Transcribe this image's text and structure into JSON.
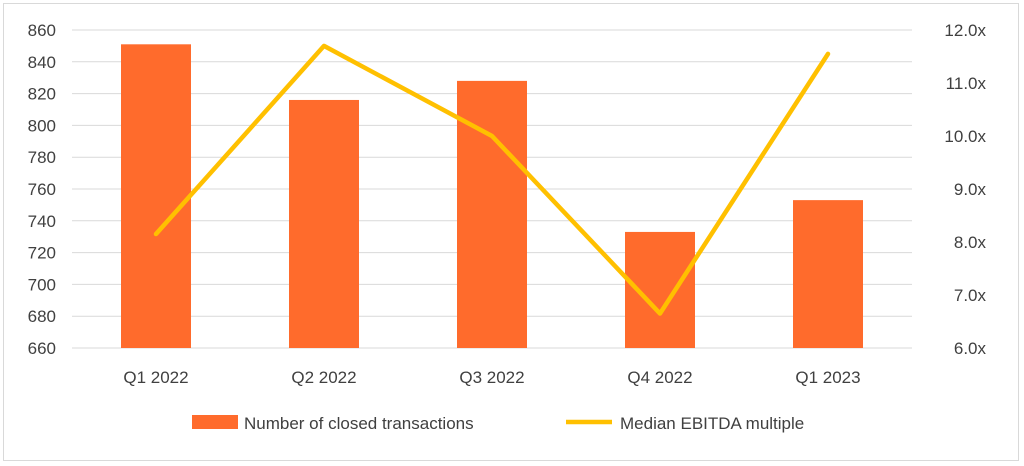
{
  "chart_data": {
    "type": "bar",
    "categories": [
      "Q1 2022",
      "Q2 2022",
      "Q3 2022",
      "Q4 2022",
      "Q1 2023"
    ],
    "series": [
      {
        "name": "Number of closed transactions",
        "kind": "bar",
        "axis": "left",
        "color": "#ff6b2c",
        "values": [
          851,
          816,
          828,
          733,
          753
        ]
      },
      {
        "name": "Median EBITDA multiple",
        "kind": "line",
        "axis": "right",
        "color": "#ffc000",
        "values": [
          8.15,
          11.7,
          10.0,
          6.65,
          11.55
        ]
      }
    ],
    "y_left": {
      "min": 660,
      "max": 860,
      "step": 20,
      "ticks": [
        "660",
        "680",
        "700",
        "720",
        "740",
        "760",
        "780",
        "800",
        "820",
        "840",
        "860"
      ]
    },
    "y_right": {
      "min": 6.0,
      "max": 12.0,
      "step": 1.0,
      "ticks": [
        "6.0x",
        "7.0x",
        "8.0x",
        "9.0x",
        "10.0x",
        "11.0x",
        "12.0x"
      ]
    },
    "grid": true,
    "legend_position": "bottom",
    "title": "",
    "xlabel": "",
    "ylabel": ""
  }
}
